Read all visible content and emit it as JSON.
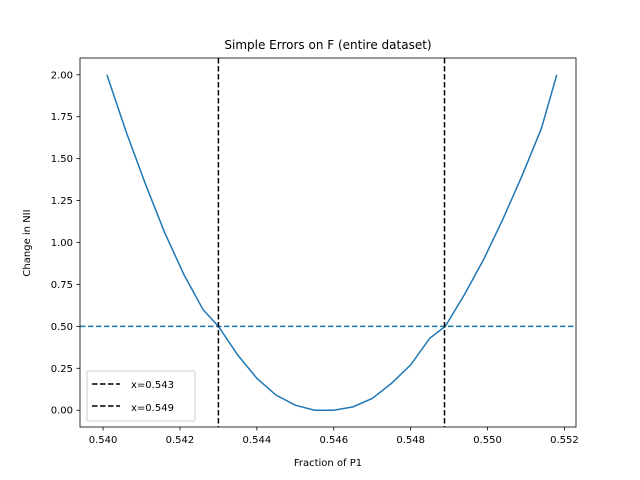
{
  "chart_data": {
    "type": "line",
    "title": "Simple Errors on F (entire dataset)",
    "xlabel": "Fraction of P1",
    "ylabel": "Change in NII",
    "xlim": [
      0.5394,
      0.5523
    ],
    "ylim": [
      -0.1,
      2.1
    ],
    "xticks": [
      0.54,
      0.542,
      0.544,
      0.546,
      0.548,
      0.55,
      0.552
    ],
    "xtick_labels": [
      "0.540",
      "0.542",
      "0.544",
      "0.546",
      "0.548",
      "0.550",
      "0.552"
    ],
    "yticks": [
      0.0,
      0.25,
      0.5,
      0.75,
      1.0,
      1.25,
      1.5,
      1.75,
      2.0
    ],
    "ytick_labels": [
      "0.00",
      "0.25",
      "0.50",
      "0.75",
      "1.00",
      "1.25",
      "1.50",
      "1.75",
      "2.00"
    ],
    "grid": false,
    "legend_position": "lower-left",
    "series": [
      {
        "style": "solid",
        "color": "#1f77b4",
        "x": [
          0.5401,
          0.5406,
          0.5411,
          0.5416,
          0.5421,
          0.5426,
          0.543,
          0.5435,
          0.544,
          0.5445,
          0.545,
          0.5455,
          0.546,
          0.5465,
          0.547,
          0.5475,
          0.548,
          0.5485,
          0.5489,
          0.5494,
          0.5499,
          0.5504,
          0.5509,
          0.5514,
          0.5518
        ],
        "y": [
          2.0,
          1.66,
          1.35,
          1.06,
          0.81,
          0.6,
          0.5,
          0.33,
          0.19,
          0.09,
          0.03,
          0.0,
          0.0,
          0.02,
          0.07,
          0.16,
          0.27,
          0.43,
          0.5,
          0.69,
          0.9,
          1.14,
          1.4,
          1.68,
          2.0
        ]
      }
    ],
    "hlines": [
      {
        "y": 0.5,
        "style": "dashed",
        "color": "#1f77b4"
      }
    ],
    "vlines": [
      {
        "x": 0.543,
        "style": "dashed",
        "color": "#000000",
        "label": "x=0.543"
      },
      {
        "x": 0.54888,
        "style": "dashed",
        "color": "#000000",
        "label": "x=0.549"
      }
    ]
  }
}
